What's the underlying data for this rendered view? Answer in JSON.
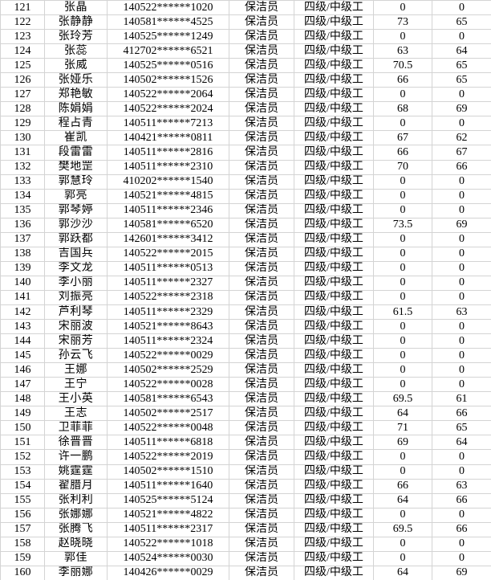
{
  "colors": {
    "gridline": "#d4d4d4",
    "text": "#000000",
    "background": "#ffffff"
  },
  "rows": [
    {
      "no": "121",
      "name": "张晶",
      "id_number": "140522******1020",
      "position": "保洁员",
      "level": "四级/中级工",
      "score1": "0",
      "score2": "0"
    },
    {
      "no": "122",
      "name": "张静静",
      "id_number": "140581******4525",
      "position": "保洁员",
      "level": "四级/中级工",
      "score1": "73",
      "score2": "65"
    },
    {
      "no": "123",
      "name": "张玲芳",
      "id_number": "140525******1249",
      "position": "保洁员",
      "level": "四级/中级工",
      "score1": "0",
      "score2": "0"
    },
    {
      "no": "124",
      "name": "张蕊",
      "id_number": "412702******6521",
      "position": "保洁员",
      "level": "四级/中级工",
      "score1": "63",
      "score2": "64"
    },
    {
      "no": "125",
      "name": "张威",
      "id_number": "140525******0516",
      "position": "保洁员",
      "level": "四级/中级工",
      "score1": "70.5",
      "score2": "65"
    },
    {
      "no": "126",
      "name": "张娅乐",
      "id_number": "140502******1526",
      "position": "保洁员",
      "level": "四级/中级工",
      "score1": "66",
      "score2": "65"
    },
    {
      "no": "127",
      "name": "郑艳敏",
      "id_number": "140522******2064",
      "position": "保洁员",
      "level": "四级/中级工",
      "score1": "0",
      "score2": "0"
    },
    {
      "no": "128",
      "name": "陈娟娟",
      "id_number": "140522******2024",
      "position": "保洁员",
      "level": "四级/中级工",
      "score1": "68",
      "score2": "69"
    },
    {
      "no": "129",
      "name": "程占青",
      "id_number": "140511******7213",
      "position": "保洁员",
      "level": "四级/中级工",
      "score1": "0",
      "score2": "0"
    },
    {
      "no": "130",
      "name": "崔凯",
      "id_number": "140421******0811",
      "position": "保洁员",
      "level": "四级/中级工",
      "score1": "67",
      "score2": "62"
    },
    {
      "no": "131",
      "name": "段雷雷",
      "id_number": "140511******2816",
      "position": "保洁员",
      "level": "四级/中级工",
      "score1": "66",
      "score2": "67"
    },
    {
      "no": "132",
      "name": "樊地罡",
      "id_number": "140511******2310",
      "position": "保洁员",
      "level": "四级/中级工",
      "score1": "70",
      "score2": "66"
    },
    {
      "no": "133",
      "name": "郭慧玲",
      "id_number": "410202******1540",
      "position": "保洁员",
      "level": "四级/中级工",
      "score1": "0",
      "score2": "0"
    },
    {
      "no": "134",
      "name": "郭亮",
      "id_number": "140521******4815",
      "position": "保洁员",
      "level": "四级/中级工",
      "score1": "0",
      "score2": "0"
    },
    {
      "no": "135",
      "name": "郭琴婷",
      "id_number": "140511******2346",
      "position": "保洁员",
      "level": "四级/中级工",
      "score1": "0",
      "score2": "0"
    },
    {
      "no": "136",
      "name": "郭沙沙",
      "id_number": "140581******6520",
      "position": "保洁员",
      "level": "四级/中级工",
      "score1": "73.5",
      "score2": "69"
    },
    {
      "no": "137",
      "name": "郭跃都",
      "id_number": "142601******3412",
      "position": "保洁员",
      "level": "四级/中级工",
      "score1": "0",
      "score2": "0"
    },
    {
      "no": "138",
      "name": "吉国兵",
      "id_number": "140522******2015",
      "position": "保洁员",
      "level": "四级/中级工",
      "score1": "0",
      "score2": "0"
    },
    {
      "no": "139",
      "name": "李文龙",
      "id_number": "140511******0513",
      "position": "保洁员",
      "level": "四级/中级工",
      "score1": "0",
      "score2": "0"
    },
    {
      "no": "140",
      "name": "李小丽",
      "id_number": "140511******2327",
      "position": "保洁员",
      "level": "四级/中级工",
      "score1": "0",
      "score2": "0"
    },
    {
      "no": "141",
      "name": "刘振亮",
      "id_number": "140522******2318",
      "position": "保洁员",
      "level": "四级/中级工",
      "score1": "0",
      "score2": "0"
    },
    {
      "no": "142",
      "name": "芦利琴",
      "id_number": "140511******2329",
      "position": "保洁员",
      "level": "四级/中级工",
      "score1": "61.5",
      "score2": "63"
    },
    {
      "no": "143",
      "name": "宋丽波",
      "id_number": "140521******8643",
      "position": "保洁员",
      "level": "四级/中级工",
      "score1": "0",
      "score2": "0"
    },
    {
      "no": "144",
      "name": "宋丽芳",
      "id_number": "140511******2324",
      "position": "保洁员",
      "level": "四级/中级工",
      "score1": "0",
      "score2": "0"
    },
    {
      "no": "145",
      "name": "孙云飞",
      "id_number": "140522******0029",
      "position": "保洁员",
      "level": "四级/中级工",
      "score1": "0",
      "score2": "0"
    },
    {
      "no": "146",
      "name": "王娜",
      "id_number": "140502******2529",
      "position": "保洁员",
      "level": "四级/中级工",
      "score1": "0",
      "score2": "0"
    },
    {
      "no": "147",
      "name": "王宁",
      "id_number": "140522******0028",
      "position": "保洁员",
      "level": "四级/中级工",
      "score1": "0",
      "score2": "0"
    },
    {
      "no": "148",
      "name": "王小英",
      "id_number": "140581******6543",
      "position": "保洁员",
      "level": "四级/中级工",
      "score1": "69.5",
      "score2": "61"
    },
    {
      "no": "149",
      "name": "王志",
      "id_number": "140502******2517",
      "position": "保洁员",
      "level": "四级/中级工",
      "score1": "64",
      "score2": "66"
    },
    {
      "no": "150",
      "name": "卫菲菲",
      "id_number": "140522******0048",
      "position": "保洁员",
      "level": "四级/中级工",
      "score1": "71",
      "score2": "65"
    },
    {
      "no": "151",
      "name": "徐晋晋",
      "id_number": "140511******6818",
      "position": "保洁员",
      "level": "四级/中级工",
      "score1": "69",
      "score2": "64"
    },
    {
      "no": "152",
      "name": "许一鹏",
      "id_number": "140522******2019",
      "position": "保洁员",
      "level": "四级/中级工",
      "score1": "0",
      "score2": "0"
    },
    {
      "no": "153",
      "name": "姚霆霆",
      "id_number": "140502******1510",
      "position": "保洁员",
      "level": "四级/中级工",
      "score1": "0",
      "score2": "0"
    },
    {
      "no": "154",
      "name": "翟腊月",
      "id_number": "140511******1640",
      "position": "保洁员",
      "level": "四级/中级工",
      "score1": "66",
      "score2": "63"
    },
    {
      "no": "155",
      "name": "张利利",
      "id_number": "140525******5124",
      "position": "保洁员",
      "level": "四级/中级工",
      "score1": "64",
      "score2": "66"
    },
    {
      "no": "156",
      "name": "张娜娜",
      "id_number": "140521******4822",
      "position": "保洁员",
      "level": "四级/中级工",
      "score1": "0",
      "score2": "0"
    },
    {
      "no": "157",
      "name": "张腾飞",
      "id_number": "140511******2317",
      "position": "保洁员",
      "level": "四级/中级工",
      "score1": "69.5",
      "score2": "66"
    },
    {
      "no": "158",
      "name": "赵晓晓",
      "id_number": "140522******1018",
      "position": "保洁员",
      "level": "四级/中级工",
      "score1": "0",
      "score2": "0"
    },
    {
      "no": "159",
      "name": "郭佳",
      "id_number": "140524******0030",
      "position": "保洁员",
      "level": "四级/中级工",
      "score1": "0",
      "score2": "0"
    },
    {
      "no": "160",
      "name": "李丽娜",
      "id_number": "140426******0029",
      "position": "保洁员",
      "level": "四级/中级工",
      "score1": "64",
      "score2": "69"
    }
  ]
}
